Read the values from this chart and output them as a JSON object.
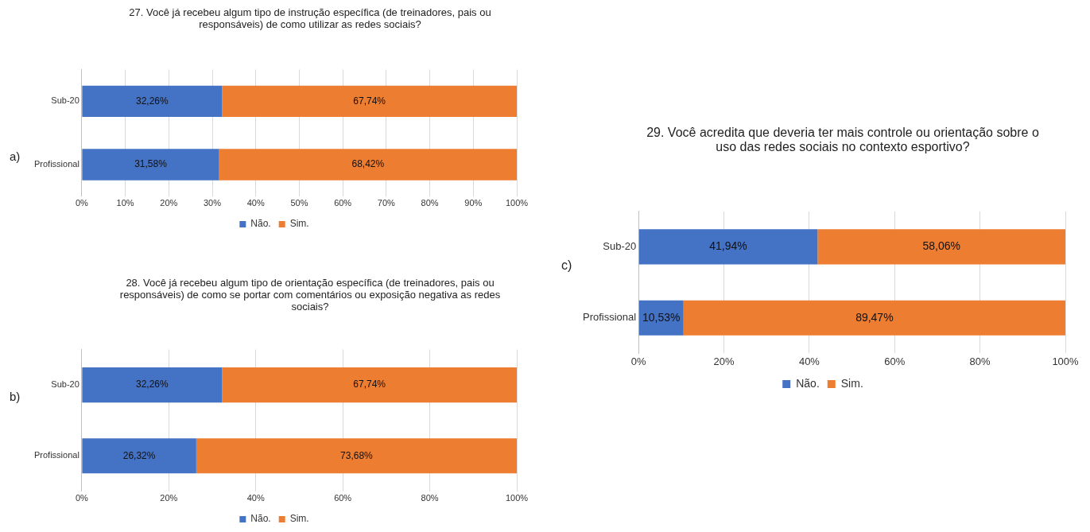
{
  "chart_data": [
    {
      "type": "bar",
      "orientation": "horizontal",
      "stacked": true,
      "title": "27. Você já recebeu algum tipo de instrução específica (de treinadores, pais ou responsáveis) de como utilizar as redes sociais?",
      "categories": [
        "Sub-20",
        "Profissional"
      ],
      "series": [
        {
          "name": "Não.",
          "color": "#4472c4",
          "values": [
            32.26,
            31.58
          ],
          "value_labels": [
            "32,26%",
            "31,58%"
          ]
        },
        {
          "name": "Sim.",
          "color": "#ed7d31",
          "values": [
            67.74,
            68.42
          ],
          "value_labels": [
            "67,74%",
            "68,42%"
          ]
        }
      ],
      "xlim": [
        0,
        100
      ],
      "xticks": [
        {
          "value": 0,
          "label": "0%"
        },
        {
          "value": 10,
          "label": "10%"
        },
        {
          "value": 20,
          "label": "20%"
        },
        {
          "value": 30,
          "label": "30%"
        },
        {
          "value": 40,
          "label": "40%"
        },
        {
          "value": 50,
          "label": "50%"
        },
        {
          "value": 60,
          "label": "60%"
        },
        {
          "value": 70,
          "label": "70%"
        },
        {
          "value": 80,
          "label": "80%"
        },
        {
          "value": 90,
          "label": "90%"
        },
        {
          "value": 100,
          "label": "100%"
        }
      ],
      "grid": "x",
      "legend": "bottom",
      "annotations": [
        "a)"
      ]
    },
    {
      "type": "bar",
      "orientation": "horizontal",
      "stacked": true,
      "title": "28. Você já recebeu algum tipo de orientação específica (de treinadores, pais ou responsáveis) de como se portar com comentários ou exposição negativa as redes sociais?",
      "categories": [
        "Sub-20",
        "Profissional"
      ],
      "series": [
        {
          "name": "Não.",
          "color": "#4472c4",
          "values": [
            32.26,
            26.32
          ],
          "value_labels": [
            "32,26%",
            "26,32%"
          ]
        },
        {
          "name": "Sim.",
          "color": "#ed7d31",
          "values": [
            67.74,
            73.68
          ],
          "value_labels": [
            "67,74%",
            "73,68%"
          ]
        }
      ],
      "xlim": [
        0,
        100
      ],
      "xticks": [
        {
          "value": 0,
          "label": "0%"
        },
        {
          "value": 20,
          "label": "20%"
        },
        {
          "value": 40,
          "label": "40%"
        },
        {
          "value": 60,
          "label": "60%"
        },
        {
          "value": 80,
          "label": "80%"
        },
        {
          "value": 100,
          "label": "100%"
        }
      ],
      "grid": "x",
      "legend": "bottom",
      "annotations": [
        "b)"
      ]
    },
    {
      "type": "bar",
      "orientation": "horizontal",
      "stacked": true,
      "title": "29. Você acredita que deveria ter mais controle ou orientação sobre o uso das redes sociais no contexto esportivo?",
      "categories": [
        "Sub-20",
        "Profissional"
      ],
      "series": [
        {
          "name": "Não.",
          "color": "#4472c4",
          "values": [
            41.94,
            10.53
          ],
          "value_labels": [
            "41,94%",
            "10,53%"
          ]
        },
        {
          "name": "Sim.",
          "color": "#ed7d31",
          "values": [
            58.06,
            89.47
          ],
          "value_labels": [
            "58,06%",
            "89,47%"
          ]
        }
      ],
      "xlim": [
        0,
        100
      ],
      "xticks": [
        {
          "value": 0,
          "label": "0%"
        },
        {
          "value": 20,
          "label": "20%"
        },
        {
          "value": 40,
          "label": "40%"
        },
        {
          "value": 60,
          "label": "60%"
        },
        {
          "value": 80,
          "label": "80%"
        },
        {
          "value": 100,
          "label": "100%"
        }
      ],
      "grid": "x",
      "legend": "bottom",
      "annotations": [
        "c)"
      ]
    }
  ]
}
